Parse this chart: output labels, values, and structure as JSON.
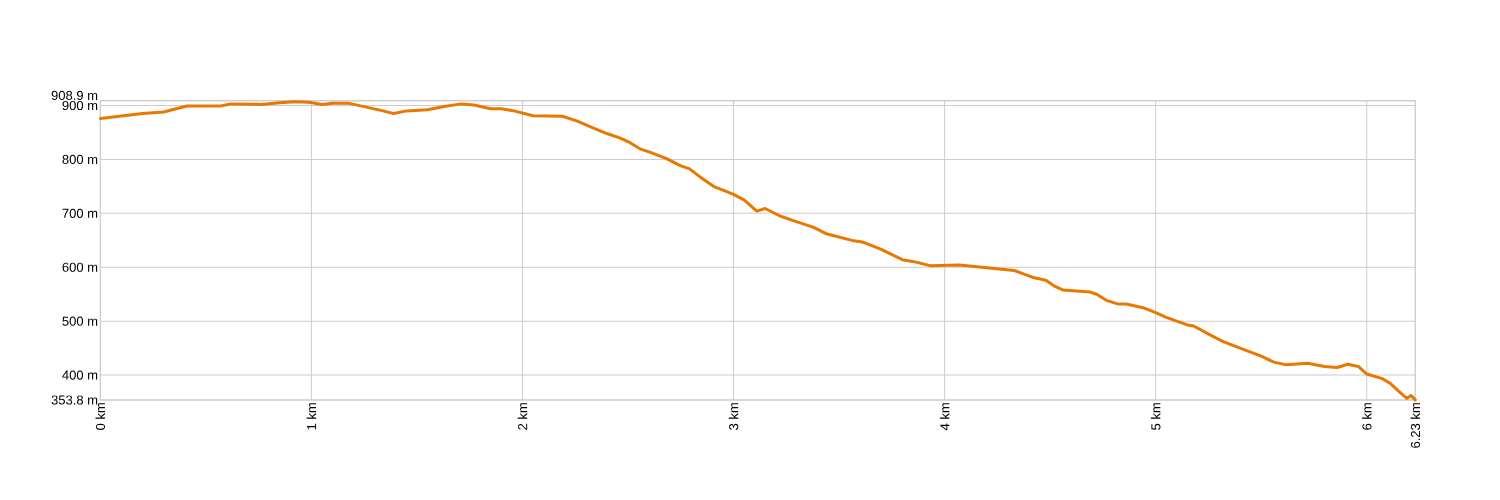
{
  "chart_data": {
    "type": "line",
    "x": [
      0,
      0.13,
      0.2,
      0.3,
      0.41,
      0.57,
      0.62,
      0.76,
      0.85,
      0.92,
      0.99,
      1.05,
      1.1,
      1.18,
      1.26,
      1.33,
      1.39,
      1.45,
      1.55,
      1.63,
      1.71,
      1.77,
      1.85,
      1.9,
      1.96,
      2.05,
      2.19,
      2.26,
      2.32,
      2.4,
      2.46,
      2.51,
      2.56,
      2.6,
      2.68,
      2.75,
      2.79,
      2.84,
      2.91,
      2.95,
      3.0,
      3.05,
      3.11,
      3.15,
      3.22,
      3.28,
      3.38,
      3.44,
      3.57,
      3.61,
      3.7,
      3.8,
      3.87,
      3.93,
      4.07,
      4.2,
      4.33,
      4.37,
      4.42,
      4.48,
      4.52,
      4.56,
      4.69,
      4.72,
      4.77,
      4.82,
      4.86,
      4.94,
      5.0,
      5.05,
      5.15,
      5.18,
      5.26,
      5.32,
      5.4,
      5.44,
      5.5,
      5.56,
      5.62,
      5.72,
      5.8,
      5.86,
      5.91,
      5.96,
      6.0,
      6.07,
      6.11,
      6.16,
      6.19,
      6.21,
      6.23
    ],
    "series": [
      {
        "color": "#e87800",
        "values": [
          876,
          882,
          885,
          888,
          899,
          899,
          903,
          902,
          905,
          907,
          906,
          902,
          904,
          904,
          897,
          891,
          885,
          890,
          892,
          898,
          903,
          901,
          894,
          894,
          890,
          881,
          880,
          871,
          861,
          848,
          840,
          831,
          819,
          814,
          802,
          788,
          783,
          768,
          749,
          743,
          735,
          725,
          704,
          709,
          695,
          687,
          674,
          662,
          649,
          647,
          633,
          614,
          609,
          603,
          604,
          599,
          594,
          588,
          581,
          576,
          565,
          558,
          554,
          550,
          538,
          532,
          532,
          525,
          516,
          507,
          493,
          491,
          474,
          462,
          450,
          444,
          435,
          424,
          419,
          422,
          416,
          414,
          420,
          416,
          402,
          394,
          385,
          367,
          357,
          362,
          354
        ]
      }
    ],
    "xlim": [
      0,
      6.23
    ],
    "ylim": [
      353.8,
      908.9
    ],
    "xticks": [
      {
        "value": 0,
        "label": "0 km"
      },
      {
        "value": 1,
        "label": "1 km"
      },
      {
        "value": 2,
        "label": "2 km"
      },
      {
        "value": 3,
        "label": "3 km"
      },
      {
        "value": 4,
        "label": "4 km"
      },
      {
        "value": 5,
        "label": "5 km"
      },
      {
        "value": 6,
        "label": "6 km"
      },
      {
        "value": 6.23,
        "label": "6.23 km"
      }
    ],
    "yticks": [
      {
        "value": 353.8,
        "label": "353.8 m"
      },
      {
        "value": 400,
        "label": "400 m"
      },
      {
        "value": 500,
        "label": "500 m"
      },
      {
        "value": 600,
        "label": "600 m"
      },
      {
        "value": 700,
        "label": "700 m"
      },
      {
        "value": 800,
        "label": "800 m"
      },
      {
        "value": 900,
        "label": "900 m"
      },
      {
        "value": 908.9,
        "label": "908.9 m"
      }
    ],
    "grid": true
  }
}
